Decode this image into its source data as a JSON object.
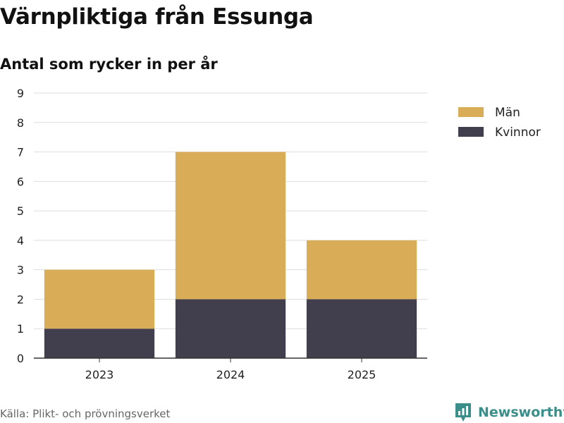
{
  "chart_data": {
    "type": "bar",
    "stacked": true,
    "title": "Värnpliktiga från Essunga",
    "subtitle": "Antal som rycker in per år",
    "categories": [
      "2023",
      "2024",
      "2025"
    ],
    "series": [
      {
        "name": "Kvinnor",
        "values": [
          1,
          2,
          2
        ],
        "color": "#413f4d"
      },
      {
        "name": "Män",
        "values": [
          2,
          5,
          2
        ],
        "color": "#d9ac58"
      }
    ],
    "ylim": [
      0,
      9
    ],
    "yticks": [
      "0",
      "1",
      "2",
      "3",
      "4",
      "5",
      "6",
      "7",
      "8",
      "9"
    ],
    "grid": true,
    "legend_position": "top-right",
    "legend_order": [
      "Män",
      "Kvinnor"
    ]
  },
  "source": "Källa: Plikt- och prövningsverket",
  "logo": {
    "text": "Newsworthy",
    "icon": "newsworthy-logo-icon",
    "color": "#3a8f8a"
  }
}
